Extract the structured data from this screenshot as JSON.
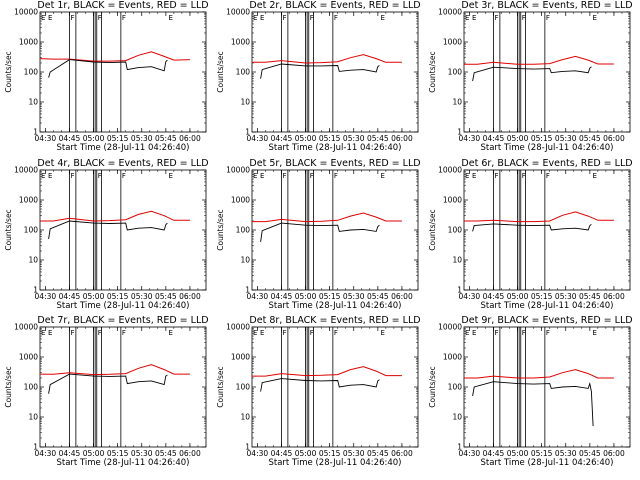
{
  "chart_data": {
    "type": "line",
    "panel_grid": "3x3",
    "y_scale": "log",
    "ylim": [
      1,
      10000
    ],
    "y_ticks": [
      {
        "value": 1,
        "label": "1"
      },
      {
        "value": 10,
        "label": "10"
      },
      {
        "value": 100,
        "label": "100"
      },
      {
        "value": 1000,
        "label": "1000"
      },
      {
        "value": 10000,
        "label": "10000"
      }
    ],
    "xlim": [
      "04:26:40",
      "06:10:00"
    ],
    "x_ticks": [
      "04:30",
      "04:45",
      "05:00",
      "05:15",
      "05:30",
      "05:45",
      "06:00"
    ],
    "xlabel": "Start Time (28-Jul-11 04:26:40)",
    "ylabel": "Counts/sec",
    "grid": false,
    "legend": "none",
    "series_colors": {
      "events": "#000000",
      "lld": "#e00000"
    },
    "vertical_markers": [
      "04:45",
      "04:49",
      "05:00",
      "05:01",
      "05:02",
      "05:05",
      "05:17"
    ],
    "edge_flag_text": "E",
    "top_flags": [
      {
        "time": "04:31",
        "text": "E"
      },
      {
        "time": "04:45",
        "text": "F"
      },
      {
        "time": "05:02",
        "text": "F"
      },
      {
        "time": "05:17",
        "text": "F"
      },
      {
        "time": "05:46",
        "text": "E"
      }
    ],
    "panels": [
      {
        "title": "Det 1r, BLACK = Events, RED = LLD",
        "lld": [
          [
            "04:26:40",
            280
          ],
          [
            "04:35",
            270
          ],
          [
            "04:45",
            270
          ],
          [
            "05:00",
            230
          ],
          [
            "05:10",
            230
          ],
          [
            "05:20",
            240
          ],
          [
            "05:28",
            360
          ],
          [
            "05:36",
            470
          ],
          [
            "05:44",
            330
          ],
          [
            "05:50",
            250
          ],
          [
            "06:00",
            260
          ]
        ],
        "events": [
          [
            "04:32",
            65
          ],
          [
            "04:33",
            100
          ],
          [
            "04:45",
            260
          ],
          [
            "05:00",
            215
          ],
          [
            "05:10",
            205
          ],
          [
            "05:20",
            215
          ],
          [
            "05:21",
            120
          ],
          [
            "05:28",
            140
          ],
          [
            "05:36",
            150
          ],
          [
            "05:44",
            110
          ],
          [
            "05:45",
            220
          ],
          [
            "05:46",
            250
          ]
        ]
      },
      {
        "title": "Det 2r, BLACK = Events, RED = LLD",
        "lld": [
          [
            "04:26:40",
            210
          ],
          [
            "04:35",
            210
          ],
          [
            "04:45",
            240
          ],
          [
            "05:00",
            200
          ],
          [
            "05:10",
            205
          ],
          [
            "05:20",
            220
          ],
          [
            "05:28",
            300
          ],
          [
            "05:36",
            380
          ],
          [
            "05:44",
            280
          ],
          [
            "05:50",
            210
          ],
          [
            "06:00",
            210
          ]
        ],
        "events": [
          [
            "04:32",
            60
          ],
          [
            "04:33",
            120
          ],
          [
            "04:45",
            185
          ],
          [
            "05:00",
            160
          ],
          [
            "05:10",
            160
          ],
          [
            "05:20",
            165
          ],
          [
            "05:21",
            105
          ],
          [
            "05:28",
            115
          ],
          [
            "05:36",
            120
          ],
          [
            "05:44",
            100
          ],
          [
            "05:45",
            150
          ],
          [
            "05:46",
            165
          ]
        ]
      },
      {
        "title": "Det 3r, BLACK = Events, RED = LLD",
        "lld": [
          [
            "04:26:40",
            180
          ],
          [
            "04:35",
            180
          ],
          [
            "04:45",
            210
          ],
          [
            "05:00",
            180
          ],
          [
            "05:10",
            180
          ],
          [
            "05:20",
            190
          ],
          [
            "05:28",
            260
          ],
          [
            "05:36",
            330
          ],
          [
            "05:44",
            250
          ],
          [
            "05:50",
            185
          ],
          [
            "06:00",
            185
          ]
        ],
        "events": [
          [
            "04:32",
            50
          ],
          [
            "04:33",
            95
          ],
          [
            "04:45",
            145
          ],
          [
            "05:00",
            130
          ],
          [
            "05:10",
            125
          ],
          [
            "05:20",
            130
          ],
          [
            "05:21",
            95
          ],
          [
            "05:28",
            105
          ],
          [
            "05:36",
            110
          ],
          [
            "05:44",
            95
          ],
          [
            "05:45",
            135
          ],
          [
            "05:46",
            150
          ]
        ]
      },
      {
        "title": "Det 4r, BLACK = Events, RED = LLD",
        "lld": [
          [
            "04:26:40",
            200
          ],
          [
            "04:35",
            200
          ],
          [
            "04:45",
            245
          ],
          [
            "05:00",
            200
          ],
          [
            "05:10",
            205
          ],
          [
            "05:20",
            220
          ],
          [
            "05:28",
            330
          ],
          [
            "05:36",
            420
          ],
          [
            "05:44",
            300
          ],
          [
            "05:50",
            210
          ],
          [
            "06:00",
            210
          ]
        ],
        "events": [
          [
            "04:32",
            50
          ],
          [
            "04:33",
            110
          ],
          [
            "04:45",
            200
          ],
          [
            "05:00",
            170
          ],
          [
            "05:10",
            165
          ],
          [
            "05:20",
            170
          ],
          [
            "05:21",
            100
          ],
          [
            "05:28",
            115
          ],
          [
            "05:36",
            120
          ],
          [
            "05:44",
            100
          ],
          [
            "05:45",
            150
          ],
          [
            "05:46",
            170
          ]
        ]
      },
      {
        "title": "Det 5r, BLACK = Events, RED = LLD",
        "lld": [
          [
            "04:26:40",
            190
          ],
          [
            "04:35",
            190
          ],
          [
            "04:45",
            225
          ],
          [
            "05:00",
            190
          ],
          [
            "05:10",
            195
          ],
          [
            "05:20",
            210
          ],
          [
            "05:28",
            290
          ],
          [
            "05:36",
            370
          ],
          [
            "05:44",
            270
          ],
          [
            "05:50",
            200
          ],
          [
            "06:00",
            200
          ]
        ],
        "events": [
          [
            "04:32",
            40
          ],
          [
            "04:33",
            95
          ],
          [
            "04:45",
            170
          ],
          [
            "05:00",
            145
          ],
          [
            "05:10",
            140
          ],
          [
            "05:20",
            145
          ],
          [
            "05:21",
            90
          ],
          [
            "05:28",
            100
          ],
          [
            "05:36",
            105
          ],
          [
            "05:44",
            90
          ],
          [
            "05:45",
            130
          ],
          [
            "05:46",
            145
          ]
        ]
      },
      {
        "title": "Det 6r, BLACK = Events, RED = LLD",
        "lld": [
          [
            "04:26:40",
            200
          ],
          [
            "04:35",
            200
          ],
          [
            "04:45",
            210
          ],
          [
            "05:00",
            190
          ],
          [
            "05:10",
            190
          ],
          [
            "05:20",
            200
          ],
          [
            "05:28",
            310
          ],
          [
            "05:36",
            400
          ],
          [
            "05:44",
            290
          ],
          [
            "05:50",
            210
          ],
          [
            "06:00",
            210
          ]
        ],
        "events": [
          [
            "04:32",
            90
          ],
          [
            "04:33",
            140
          ],
          [
            "04:45",
            160
          ],
          [
            "05:00",
            145
          ],
          [
            "05:10",
            140
          ],
          [
            "05:20",
            145
          ],
          [
            "05:21",
            100
          ],
          [
            "05:28",
            110
          ],
          [
            "05:36",
            115
          ],
          [
            "05:44",
            100
          ],
          [
            "05:45",
            140
          ],
          [
            "05:46",
            155
          ]
        ]
      },
      {
        "title": "Det 7r, BLACK = Events, RED = LLD",
        "lld": [
          [
            "04:26:40",
            270
          ],
          [
            "04:35",
            265
          ],
          [
            "04:45",
            300
          ],
          [
            "05:00",
            260
          ],
          [
            "05:10",
            265
          ],
          [
            "05:20",
            280
          ],
          [
            "05:28",
            420
          ],
          [
            "05:36",
            560
          ],
          [
            "05:44",
            380
          ],
          [
            "05:50",
            270
          ],
          [
            "06:00",
            270
          ]
        ],
        "events": [
          [
            "04:32",
            60
          ],
          [
            "04:33",
            120
          ],
          [
            "04:45",
            270
          ],
          [
            "05:00",
            230
          ],
          [
            "05:10",
            225
          ],
          [
            "05:20",
            230
          ],
          [
            "05:21",
            130
          ],
          [
            "05:28",
            150
          ],
          [
            "05:36",
            160
          ],
          [
            "05:44",
            120
          ],
          [
            "05:45",
            230
          ],
          [
            "05:46",
            250
          ]
        ]
      },
      {
        "title": "Det 8r, BLACK = Events, RED = LLD",
        "lld": [
          [
            "04:26:40",
            230
          ],
          [
            "04:35",
            230
          ],
          [
            "04:45",
            280
          ],
          [
            "05:00",
            240
          ],
          [
            "05:10",
            245
          ],
          [
            "05:20",
            260
          ],
          [
            "05:28",
            380
          ],
          [
            "05:36",
            480
          ],
          [
            "05:44",
            340
          ],
          [
            "05:50",
            240
          ],
          [
            "06:00",
            240
          ]
        ],
        "events": [
          [
            "04:32",
            70
          ],
          [
            "04:33",
            140
          ],
          [
            "04:45",
            190
          ],
          [
            "05:00",
            165
          ],
          [
            "05:10",
            160
          ],
          [
            "05:20",
            165
          ],
          [
            "05:21",
            100
          ],
          [
            "05:28",
            115
          ],
          [
            "05:36",
            120
          ],
          [
            "05:44",
            100
          ],
          [
            "05:45",
            160
          ],
          [
            "05:46",
            175
          ]
        ]
      },
      {
        "title": "Det 9r, BLACK = Events, RED = LLD",
        "lld": [
          [
            "04:26:40",
            200
          ],
          [
            "04:35",
            200
          ],
          [
            "04:45",
            230
          ],
          [
            "05:00",
            200
          ],
          [
            "05:10",
            200
          ],
          [
            "05:20",
            215
          ],
          [
            "05:28",
            300
          ],
          [
            "05:36",
            380
          ],
          [
            "05:44",
            280
          ],
          [
            "05:50",
            200
          ],
          [
            "06:00",
            200
          ]
        ],
        "events": [
          [
            "04:32",
            50
          ],
          [
            "04:33",
            100
          ],
          [
            "04:45",
            150
          ],
          [
            "05:00",
            130
          ],
          [
            "05:10",
            125
          ],
          [
            "05:20",
            130
          ],
          [
            "05:21",
            90
          ],
          [
            "05:28",
            100
          ],
          [
            "05:36",
            105
          ],
          [
            "05:44",
            90
          ],
          [
            "05:45",
            130
          ],
          [
            "05:46",
            70
          ],
          [
            "05:47",
            5
          ]
        ]
      }
    ]
  }
}
